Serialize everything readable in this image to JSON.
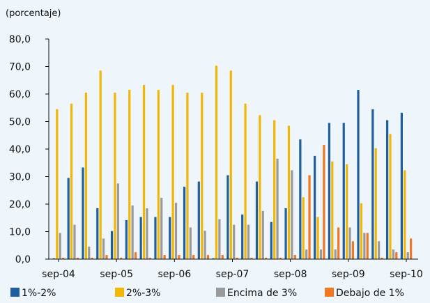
{
  "chart_data": {
    "type": "bar",
    "unit_label": "(porcentaje)",
    "ylim": [
      0,
      80
    ],
    "yticks": [
      "0,0",
      "10,0",
      "20,0",
      "30,0",
      "40,0",
      "50,0",
      "60,0",
      "70,0",
      "80,0"
    ],
    "xtick_labels": [
      "sep-04",
      "sep-05",
      "sep-06",
      "sep-07",
      "sep-08",
      "sep-09",
      "sep-10"
    ],
    "categories": [
      "sep-04",
      "dic-04",
      "mar-05",
      "jun-05",
      "sep-05",
      "dic-05",
      "mar-06",
      "jun-06",
      "sep-06",
      "dic-06",
      "mar-07",
      "jun-07",
      "sep-07",
      "dic-07",
      "mar-08",
      "jun-08",
      "sep-08",
      "dic-08",
      "mar-09",
      "jun-09",
      "sep-09",
      "dic-09",
      "mar-10",
      "jun-10",
      "sep-10"
    ],
    "series": [
      {
        "name": "1%-2%",
        "color": "#1f5fa0",
        "values": [
          0.3,
          29.5,
          33.3,
          18.5,
          10.2,
          14.2,
          15.3,
          15.3,
          15.3,
          26.3,
          28.2,
          0.3,
          30.5,
          16.2,
          28.2,
          13.5,
          18.5,
          43.5,
          37.5,
          49.5,
          49.5,
          61.5,
          54.5,
          50.5,
          53.2
        ]
      },
      {
        "name": "2%-3%",
        "color": "#f2b705",
        "values": [
          54.5,
          56.5,
          60.5,
          68.5,
          60.5,
          61.5,
          63.3,
          61.5,
          63.3,
          60.5,
          60.5,
          70.3,
          68.5,
          56.5,
          52.3,
          50.5,
          48.5,
          22.5,
          15.3,
          35.5,
          34.5,
          20.3,
          40.3,
          45.5,
          32.3
        ]
      },
      {
        "name": "Encima de 3%",
        "color": "#9a9a9a",
        "values": [
          9.5,
          12.5,
          4.5,
          7.5,
          27.5,
          19.5,
          18.5,
          22.3,
          20.5,
          11.5,
          10.3,
          14.5,
          12.5,
          12.5,
          17.5,
          36.5,
          32.3,
          3.5,
          3.5,
          3.5,
          11.5,
          9.5,
          6.5,
          3.5,
          2.5
        ]
      },
      {
        "name": "Debajo de 1%",
        "color": "#f07822",
        "values": [
          0.5,
          0.5,
          0.5,
          1.5,
          0.5,
          2.5,
          0.5,
          1.5,
          1.5,
          1.5,
          1.5,
          1.5,
          0.5,
          0.5,
          0.5,
          0.5,
          1.5,
          30.5,
          41.5,
          11.5,
          6.5,
          9.5,
          0.5,
          2.5,
          7.5
        ]
      }
    ],
    "legend_position": "bottom",
    "grid": false
  }
}
